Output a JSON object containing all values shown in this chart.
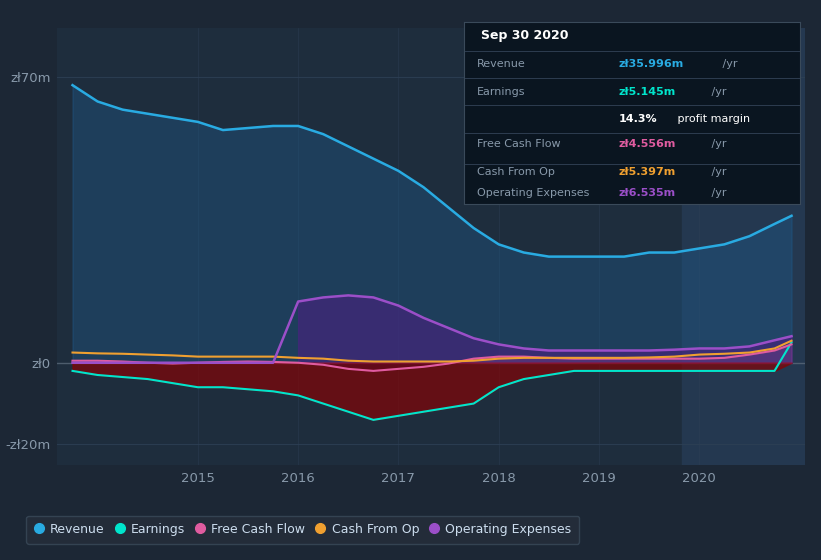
{
  "background_color": "#1c2735",
  "plot_bg_color": "#1e2d3d",
  "highlight_bg_color": "#243850",
  "xlim": [
    2013.6,
    2021.05
  ],
  "ylim": [
    -25,
    82
  ],
  "ytick_values": [
    70,
    0,
    -20
  ],
  "ytick_labels": [
    "zł70m",
    "zł0",
    "-zł20m"
  ],
  "xtick_positions": [
    2015,
    2016,
    2017,
    2018,
    2019,
    2020
  ],
  "xtick_labels": [
    "2015",
    "2016",
    "2017",
    "2018",
    "2019",
    "2020"
  ],
  "highlight_start": 2019.83,
  "highlight_end": 2021.05,
  "revenue_color": "#29abe2",
  "revenue_fill": "#1e5a8a",
  "earnings_color": "#00e5cc",
  "earnings_fill": "#8b0000",
  "freecash_color": "#e05ca0",
  "freecash_fill": "#7a2040",
  "cashop_color": "#f0a030",
  "opex_color": "#9b4fc8",
  "opex_fill": "#4a2080",
  "legend_bg": "#252e3b",
  "legend_border": "#3a4a5a",
  "info_bg": "#0a1520",
  "info_border": "#3a4a5a",
  "series": {
    "x": [
      2013.75,
      2014.0,
      2014.25,
      2014.5,
      2014.75,
      2015.0,
      2015.25,
      2015.5,
      2015.75,
      2016.0,
      2016.25,
      2016.5,
      2016.75,
      2017.0,
      2017.25,
      2017.5,
      2017.75,
      2018.0,
      2018.25,
      2018.5,
      2018.75,
      2019.0,
      2019.25,
      2019.5,
      2019.75,
      2020.0,
      2020.25,
      2020.5,
      2020.75,
      2020.92
    ],
    "revenue": [
      68,
      64,
      62,
      61,
      60,
      59,
      57,
      57.5,
      58,
      58,
      56,
      53,
      50,
      47,
      43,
      38,
      33,
      29,
      27,
      26,
      26,
      26,
      26,
      27,
      27,
      28,
      29,
      31,
      34,
      36
    ],
    "earnings": [
      -2,
      -3,
      -3.5,
      -4,
      -5,
      -6,
      -6,
      -6.5,
      -7,
      -8,
      -10,
      -12,
      -14,
      -13,
      -12,
      -11,
      -10,
      -6,
      -4,
      -3,
      -2,
      -2,
      -2,
      -2,
      -2,
      -2,
      -2,
      -2,
      -2,
      5
    ],
    "free_cash": [
      0.5,
      0.5,
      0.3,
      0.0,
      -0.2,
      0.0,
      0.2,
      0.3,
      0.2,
      0.0,
      -0.5,
      -1.5,
      -2.0,
      -1.5,
      -1.0,
      -0.2,
      1.0,
      1.5,
      1.5,
      1.2,
      1.0,
      1.0,
      1.0,
      1.0,
      1.0,
      1.0,
      1.2,
      2.0,
      3.0,
      4.5
    ],
    "cash_from_op": [
      2.5,
      2.3,
      2.2,
      2.0,
      1.8,
      1.5,
      1.5,
      1.5,
      1.5,
      1.2,
      1.0,
      0.5,
      0.3,
      0.3,
      0.3,
      0.3,
      0.5,
      1.0,
      1.2,
      1.2,
      1.2,
      1.2,
      1.2,
      1.3,
      1.5,
      2.0,
      2.2,
      2.5,
      3.5,
      5.4
    ],
    "op_expenses": [
      0,
      0,
      0,
      0,
      0,
      0,
      0,
      0,
      0,
      15,
      16,
      16.5,
      16,
      14,
      11,
      8.5,
      6,
      4.5,
      3.5,
      3.0,
      3.0,
      3.0,
      3.0,
      3.0,
      3.2,
      3.5,
      3.5,
      4.0,
      5.5,
      6.5
    ]
  }
}
